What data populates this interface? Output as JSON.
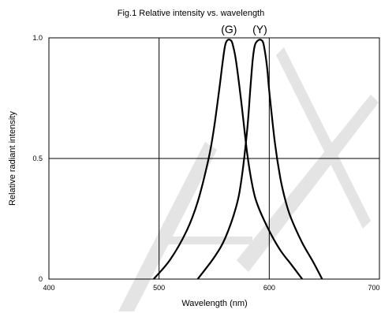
{
  "chart_data": {
    "type": "line",
    "title": "Fig.1 Relative intensity vs. wavelength",
    "xlabel": "Wavelength (nm)",
    "ylabel": "Relative radiant intensity",
    "xlim": [
      400,
      700
    ],
    "ylim": [
      0,
      1.0
    ],
    "xticks": [
      "400",
      "500",
      "600",
      "700"
    ],
    "yticks": [
      "0",
      "0.5",
      "1.0"
    ],
    "grid": true,
    "series": [
      {
        "name": "(G)",
        "x": [
          495,
          510,
          525,
          535,
          545,
          550,
          555,
          558,
          560,
          562,
          565,
          567,
          570,
          575,
          580,
          585,
          590,
          600,
          610,
          620,
          630
        ],
        "y": [
          0.0,
          0.08,
          0.2,
          0.32,
          0.5,
          0.63,
          0.8,
          0.91,
          0.97,
          0.99,
          0.99,
          0.97,
          0.9,
          0.72,
          0.52,
          0.38,
          0.3,
          0.2,
          0.12,
          0.06,
          0.0
        ]
      },
      {
        "name": "(Y)",
        "x": [
          535,
          550,
          560,
          570,
          575,
          580,
          583,
          585,
          587,
          590,
          593,
          595,
          598,
          600,
          605,
          610,
          615,
          620,
          630,
          640,
          648
        ],
        "y": [
          0.0,
          0.09,
          0.17,
          0.3,
          0.42,
          0.62,
          0.8,
          0.91,
          0.97,
          0.99,
          0.99,
          0.97,
          0.88,
          0.78,
          0.57,
          0.42,
          0.32,
          0.25,
          0.15,
          0.07,
          0.0
        ]
      }
    ]
  }
}
